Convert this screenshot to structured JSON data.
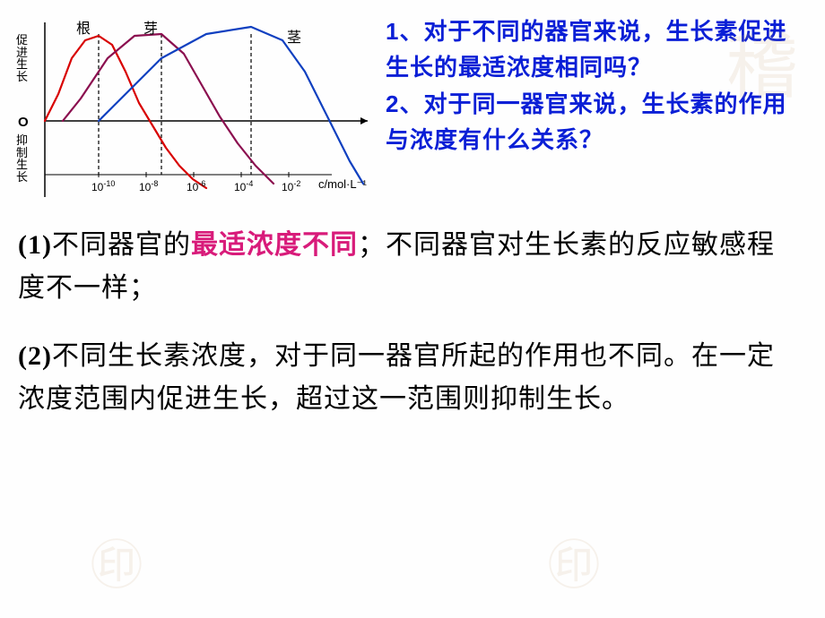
{
  "chart": {
    "type": "line",
    "series": [
      {
        "name": "根",
        "color": "#d80000",
        "label_x": 75,
        "label_y": 8,
        "points": [
          [
            40,
            125
          ],
          [
            55,
            95
          ],
          [
            70,
            55
          ],
          [
            85,
            35
          ],
          [
            100,
            30
          ],
          [
            115,
            40
          ],
          [
            130,
            70
          ],
          [
            145,
            105
          ],
          [
            160,
            130
          ],
          [
            175,
            155
          ],
          [
            190,
            175
          ],
          [
            205,
            190
          ],
          [
            220,
            200
          ]
        ]
      },
      {
        "name": "芽",
        "color": "#8b0f4f",
        "label_x": 150,
        "label_y": 8,
        "points": [
          [
            60,
            125
          ],
          [
            80,
            100
          ],
          [
            110,
            55
          ],
          [
            140,
            30
          ],
          [
            170,
            28
          ],
          [
            195,
            50
          ],
          [
            215,
            85
          ],
          [
            235,
            120
          ],
          [
            255,
            150
          ],
          [
            275,
            175
          ],
          [
            295,
            195
          ]
        ]
      },
      {
        "name": "茎",
        "color": "#1040c0",
        "label_x": 310,
        "label_y": 18,
        "points": [
          [
            100,
            125
          ],
          [
            130,
            95
          ],
          [
            170,
            55
          ],
          [
            220,
            28
          ],
          [
            270,
            20
          ],
          [
            305,
            35
          ],
          [
            330,
            70
          ],
          [
            350,
            110
          ],
          [
            365,
            140
          ],
          [
            380,
            170
          ],
          [
            395,
            195
          ]
        ]
      }
    ],
    "dashed_x": [
      100,
      170,
      270
    ],
    "y_axis_top": "促进生长",
    "y_axis_origin": "O",
    "y_axis_bot": "抑制生长",
    "x_ticks": [
      {
        "label": "10",
        "sup": "-10",
        "x": 92
      },
      {
        "label": "10",
        "sup": "-8",
        "x": 145
      },
      {
        "label": "10",
        "sup": "-6",
        "x": 198
      },
      {
        "label": "10",
        "sup": "-4",
        "x": 251
      },
      {
        "label": "10",
        "sup": "-2",
        "x": 304
      }
    ],
    "x_axis_label": "c/mol·L⁻¹",
    "axis_color": "#000000",
    "background": "#ffffff",
    "origin_x": 40,
    "origin_y": 125,
    "x_end": 400,
    "y_top": 15,
    "y_bot": 210
  },
  "questions": {
    "q1": "1、对于不同的器官来说，生长素促进生长的最适浓度相同吗？",
    "q2": "2、对于同一器官来说，生长素的作用与浓度有什么关系？"
  },
  "answers": {
    "a1_num": "(1)",
    "a1_pre": "不同器官的",
    "a1_hl": "最适浓度不同",
    "a1_post": "；不同器官对生长素的反应敏感程度不一样；",
    "a2_num": "(2)",
    "a2_text": "不同生长素浓度，对于同一器官所起的作用也不同。在一定浓度范围内促进生长，超过这一范围则抑制生长。"
  }
}
